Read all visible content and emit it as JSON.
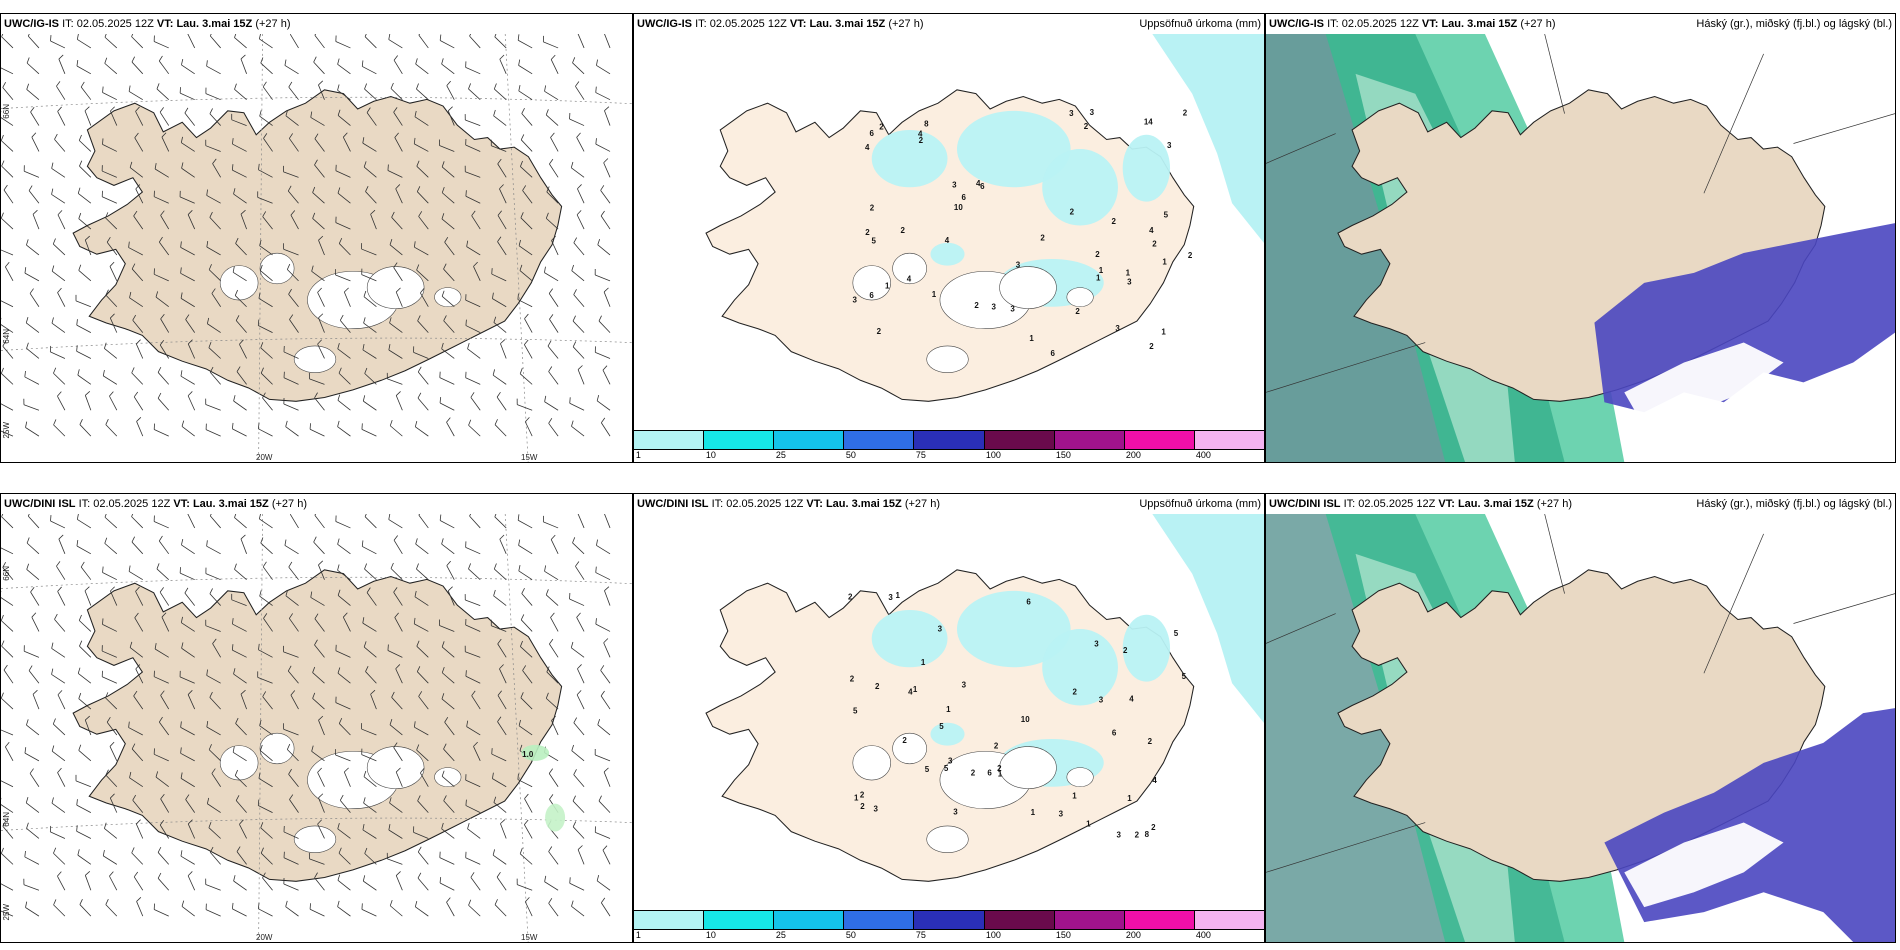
{
  "rows": [
    {
      "model": "UWC/IG-IS",
      "it_label": "IT:",
      "it_value": "02.05.2025 12Z",
      "vt_label": "VT:",
      "vt_value": "Lau. 3.mai 15Z",
      "lead": "(+27 h)"
    },
    {
      "model": "UWC/DINI ISL",
      "it_label": "IT:",
      "it_value": "02.05.2025 12Z",
      "vt_label": "VT:",
      "vt_value": "Lau. 3.mai 15Z",
      "lead": "(+27 h)"
    }
  ],
  "precip_title": "Uppsöfnuð úrkoma (mm)",
  "cloud_title": "Háský (gr.), miðský (fj.bl.) og lágský (bl.)",
  "grid_labels": {
    "lat_66": "66N",
    "lat_64": "64N",
    "lon_25": "25W",
    "lon_20": "20W",
    "lon_15": "15W"
  },
  "colorbar": {
    "ticks": [
      "1",
      "10",
      "25",
      "50",
      "75",
      "100",
      "150",
      "200",
      "400"
    ],
    "colors": [
      "#b3f4f4",
      "#16e7e7",
      "#14c4ea",
      "#2f6ee6",
      "#2a2fb8",
      "#6a0a4c",
      "#a0138c",
      "#f00fa8",
      "#f4b3f0"
    ]
  },
  "colors": {
    "land_wind": "#e9d9c4",
    "land_precip": "#fbeee0",
    "glacier": "#ffffff",
    "precip_light": "#b9f2f4",
    "cloud_land": "#e9d9c4",
    "high_cloud": "#4e8c89",
    "mid_cloud": "#2fc18f",
    "low_cloud": "#4a46c0"
  },
  "precip_values_top": [
    "2",
    "2",
    "2",
    "8",
    "6",
    "3",
    "6",
    "2",
    "3",
    "6",
    "4",
    "2",
    "6",
    "1",
    "2",
    "5",
    "3",
    "2",
    "4",
    "4",
    "2",
    "14",
    "10",
    "1",
    "3",
    "4",
    "1",
    "5",
    "2",
    "2",
    "1",
    "2",
    "6",
    "4",
    "4",
    "3",
    "1",
    "2",
    "3",
    "1",
    "3",
    "3",
    "2",
    "3",
    "1",
    "1",
    "3",
    "2",
    "2",
    "2",
    "2"
  ],
  "precip_values_bottom": [
    "2",
    "4",
    "3",
    "6",
    "8",
    "3",
    "6",
    "5",
    "5",
    "3",
    "4",
    "6",
    "2",
    "3",
    "1",
    "1",
    "10",
    "5",
    "5",
    "3",
    "2",
    "1",
    "3",
    "5",
    "1",
    "2",
    "1",
    "2",
    "2",
    "1",
    "3",
    "2",
    "3",
    "4",
    "3",
    "2",
    "2",
    "1",
    "2",
    "3",
    "5",
    "2",
    "2",
    "1",
    "1",
    "2",
    "2",
    "1"
  ],
  "wind_station_value": "1.0"
}
